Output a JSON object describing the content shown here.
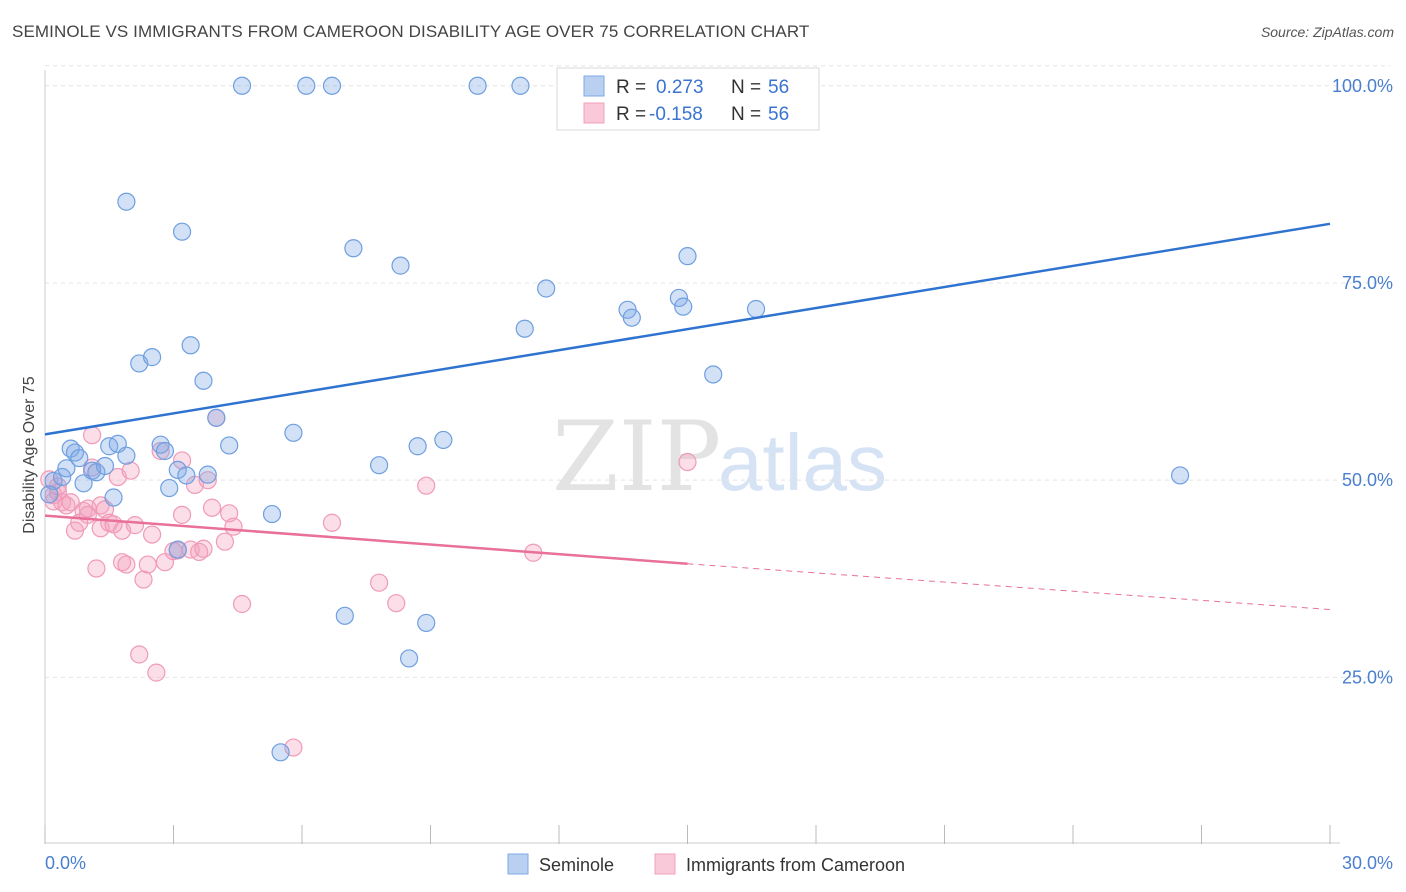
{
  "title": "SEMINOLE VS IMMIGRANTS FROM CAMEROON DISABILITY AGE OVER 75 CORRELATION CHART",
  "source": "Source: ZipAtlas.com",
  "watermark": {
    "zip": "ZIP",
    "atlas": "atlas"
  },
  "legend": {
    "r_label": "R =",
    "n_label": "N =",
    "rows": [
      {
        "r": "0.273",
        "n": "56"
      },
      {
        "r": "-0.158",
        "n": "56"
      }
    ]
  },
  "chart_data": {
    "type": "scatter",
    "title": "SEMINOLE VS IMMIGRANTS FROM CAMEROON DISABILITY AGE OVER 75 CORRELATION CHART",
    "xlabel": "",
    "ylabel": "Disability Age Over 75",
    "xlim": [
      0,
      30
    ],
    "ylim": [
      4,
      102
    ],
    "x_tick_labels": [
      "0.0%",
      "30.0%"
    ],
    "y_ticks": [
      25,
      50,
      75,
      100
    ],
    "y_tick_labels": [
      "25.0%",
      "50.0%",
      "75.0%",
      "100.0%"
    ],
    "grid": true,
    "legend_position": "top-center",
    "colors": {
      "Seminole": "#7ea9e6",
      "Immigrants from Cameroon": "#f3a0bd",
      "seminole_line": "#2f73d0",
      "cameroon_line": "#e8709a"
    },
    "series": [
      {
        "name": "Seminole",
        "r": 0.273,
        "n": 56,
        "trend": {
          "x0": 0,
          "y0": 55.8,
          "x1": 30,
          "y1": 82.5
        },
        "points": [
          [
            0.2,
            49.9
          ],
          [
            0.4,
            50.4
          ],
          [
            0.5,
            51.5
          ],
          [
            0.6,
            54.0
          ],
          [
            0.7,
            53.5
          ],
          [
            0.8,
            52.8
          ],
          [
            0.9,
            49.6
          ],
          [
            1.1,
            51.2
          ],
          [
            1.2,
            51.0
          ],
          [
            1.4,
            51.8
          ],
          [
            1.5,
            54.3
          ],
          [
            1.6,
            47.8
          ],
          [
            1.7,
            54.6
          ],
          [
            1.9,
            53.1
          ],
          [
            2.2,
            64.8
          ],
          [
            2.5,
            65.6
          ],
          [
            2.7,
            54.5
          ],
          [
            2.8,
            53.7
          ],
          [
            2.9,
            49.0
          ],
          [
            3.1,
            41.2
          ],
          [
            3.2,
            81.5
          ],
          [
            3.1,
            51.3
          ],
          [
            3.3,
            50.6
          ],
          [
            3.4,
            67.1
          ],
          [
            3.7,
            62.6
          ],
          [
            3.8,
            50.7
          ],
          [
            4.0,
            57.9
          ],
          [
            4.3,
            54.4
          ],
          [
            1.9,
            85.3
          ],
          [
            4.6,
            100.0
          ],
          [
            5.3,
            45.7
          ],
          [
            5.8,
            56.0
          ],
          [
            6.1,
            100.0
          ],
          [
            6.7,
            100.0
          ],
          [
            7.0,
            32.8
          ],
          [
            7.2,
            79.4
          ],
          [
            7.8,
            51.9
          ],
          [
            8.3,
            77.2
          ],
          [
            8.5,
            27.4
          ],
          [
            8.7,
            54.3
          ],
          [
            8.9,
            31.9
          ],
          [
            9.3,
            55.1
          ],
          [
            5.5,
            15.5
          ],
          [
            10.1,
            100.0
          ],
          [
            11.1,
            100.0
          ],
          [
            11.2,
            69.2
          ],
          [
            11.7,
            74.3
          ],
          [
            13.6,
            71.6
          ],
          [
            13.7,
            70.6
          ],
          [
            14.8,
            73.1
          ],
          [
            14.9,
            72.0
          ],
          [
            15.0,
            78.4
          ],
          [
            15.6,
            63.4
          ],
          [
            16.6,
            71.7
          ],
          [
            26.5,
            50.6
          ],
          [
            0.1,
            48.2
          ]
        ]
      },
      {
        "name": "Immigrants from Cameroon",
        "r": -0.158,
        "n": 56,
        "trend": {
          "x0": 0,
          "y0": 45.5,
          "x1": 15,
          "y1": 39.4,
          "dashed_to": {
            "x": 30,
            "y": 33.6
          }
        },
        "points": [
          [
            0.1,
            50.1
          ],
          [
            0.2,
            48.1
          ],
          [
            0.2,
            47.3
          ],
          [
            0.3,
            48.5
          ],
          [
            0.4,
            47.2
          ],
          [
            0.5,
            46.8
          ],
          [
            0.6,
            47.2
          ],
          [
            0.7,
            43.6
          ],
          [
            0.8,
            44.6
          ],
          [
            0.9,
            46.1
          ],
          [
            1.0,
            46.4
          ],
          [
            1.1,
            51.6
          ],
          [
            1.1,
            55.7
          ],
          [
            1.2,
            38.8
          ],
          [
            1.3,
            43.9
          ],
          [
            1.3,
            46.8
          ],
          [
            1.4,
            46.3
          ],
          [
            1.5,
            44.6
          ],
          [
            1.6,
            44.4
          ],
          [
            1.7,
            50.4
          ],
          [
            1.8,
            43.6
          ],
          [
            1.8,
            39.6
          ],
          [
            1.9,
            39.3
          ],
          [
            2.0,
            51.2
          ],
          [
            2.1,
            44.3
          ],
          [
            2.2,
            27.9
          ],
          [
            2.3,
            37.4
          ],
          [
            2.4,
            39.3
          ],
          [
            2.5,
            43.1
          ],
          [
            2.6,
            25.6
          ],
          [
            2.7,
            53.7
          ],
          [
            2.8,
            39.6
          ],
          [
            3.0,
            41.0
          ],
          [
            3.1,
            41.1
          ],
          [
            3.2,
            45.6
          ],
          [
            3.2,
            52.5
          ],
          [
            3.4,
            41.2
          ],
          [
            3.5,
            49.4
          ],
          [
            3.6,
            40.9
          ],
          [
            3.7,
            41.3
          ],
          [
            3.8,
            50.0
          ],
          [
            3.9,
            46.5
          ],
          [
            4.0,
            57.9
          ],
          [
            4.2,
            42.2
          ],
          [
            4.3,
            45.8
          ],
          [
            4.4,
            44.1
          ],
          [
            4.6,
            34.3
          ],
          [
            5.8,
            16.1
          ],
          [
            6.7,
            44.6
          ],
          [
            7.8,
            37.0
          ],
          [
            8.2,
            34.4
          ],
          [
            8.9,
            49.3
          ],
          [
            11.4,
            40.8
          ],
          [
            15.0,
            52.3
          ],
          [
            0.3,
            49.2
          ],
          [
            1.0,
            45.6
          ]
        ]
      }
    ]
  },
  "bottom_legend": [
    {
      "label": "Seminole"
    },
    {
      "label": "Immigrants from Cameroon"
    }
  ]
}
